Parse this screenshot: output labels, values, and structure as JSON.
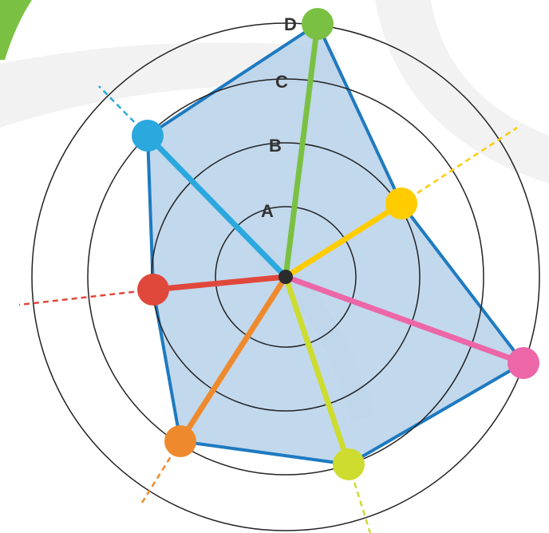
{
  "colors": {
    "background_swirl": "#f2f2f2",
    "corner_accent": "#7ac143",
    "polygon_fill": "#b7d1ea",
    "polygon_stroke": "#1e7ac0",
    "rings": "#222222",
    "center": "#2b2b2b"
  },
  "rings": [
    {
      "label": "A"
    },
    {
      "label": "B"
    },
    {
      "label": "C"
    },
    {
      "label": "D"
    }
  ],
  "spokes": [
    {
      "name": "green",
      "color": "#7ac143"
    },
    {
      "name": "yellow",
      "color": "#ffcc00"
    },
    {
      "name": "pink",
      "color": "#ec66a8"
    },
    {
      "name": "lime",
      "color": "#cddc2f"
    },
    {
      "name": "orange",
      "color": "#ee8a2d"
    },
    {
      "name": "red",
      "color": "#e0483c"
    },
    {
      "name": "blue",
      "color": "#2ba8de"
    }
  ]
}
